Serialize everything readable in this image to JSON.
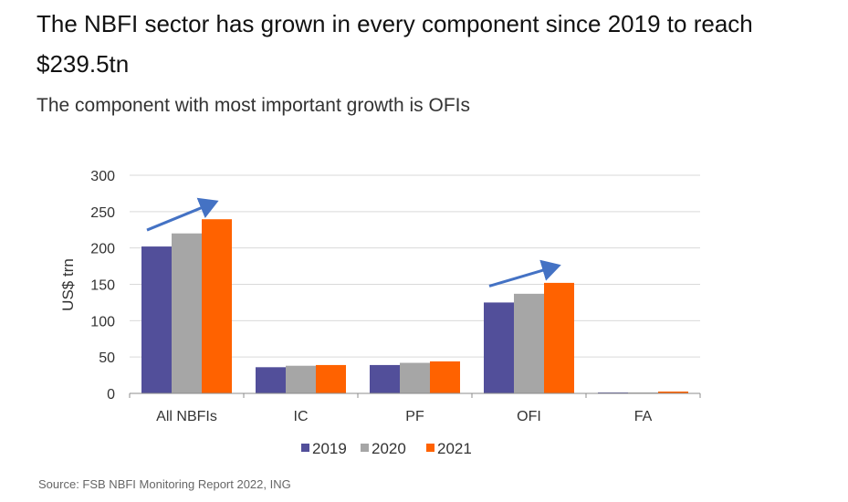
{
  "header": {
    "title": "The NBFI sector has grown in every component since 2019 to reach $239.5tn",
    "subtitle": "The component with most important growth is OFIs"
  },
  "footer": {
    "source": "Source: FSB NBFI Monitoring Report 2022, ING"
  },
  "chart_data": {
    "type": "bar",
    "title": "The NBFI sector has grown in every component since 2019 to reach $239.5tn",
    "subtitle": "The component with most important growth is OFIs",
    "xlabel": "",
    "ylabel": "US$ trn",
    "ylim": [
      0,
      300
    ],
    "yticks": [
      0,
      50,
      100,
      150,
      200,
      250,
      300
    ],
    "grid": true,
    "legend_position": "bottom",
    "categories": [
      "All NBFIs",
      "IC",
      "PF",
      "OFI",
      "FA"
    ],
    "series": [
      {
        "name": "2019",
        "color": "#524F9A",
        "values": [
          202,
          36,
          39,
          125,
          1
        ]
      },
      {
        "name": "2020",
        "color": "#A6A6A6",
        "values": [
          220,
          38,
          42,
          137,
          0.5
        ]
      },
      {
        "name": "2021",
        "color": "#FF6200",
        "values": [
          239.5,
          39,
          44,
          152,
          2.5
        ]
      }
    ],
    "annotations": [
      {
        "type": "arrow",
        "category": "All NBFIs",
        "meaning": "growth trend",
        "color": "#4472C4"
      },
      {
        "type": "arrow",
        "category": "OFI",
        "meaning": "growth trend",
        "color": "#4472C4"
      }
    ]
  }
}
